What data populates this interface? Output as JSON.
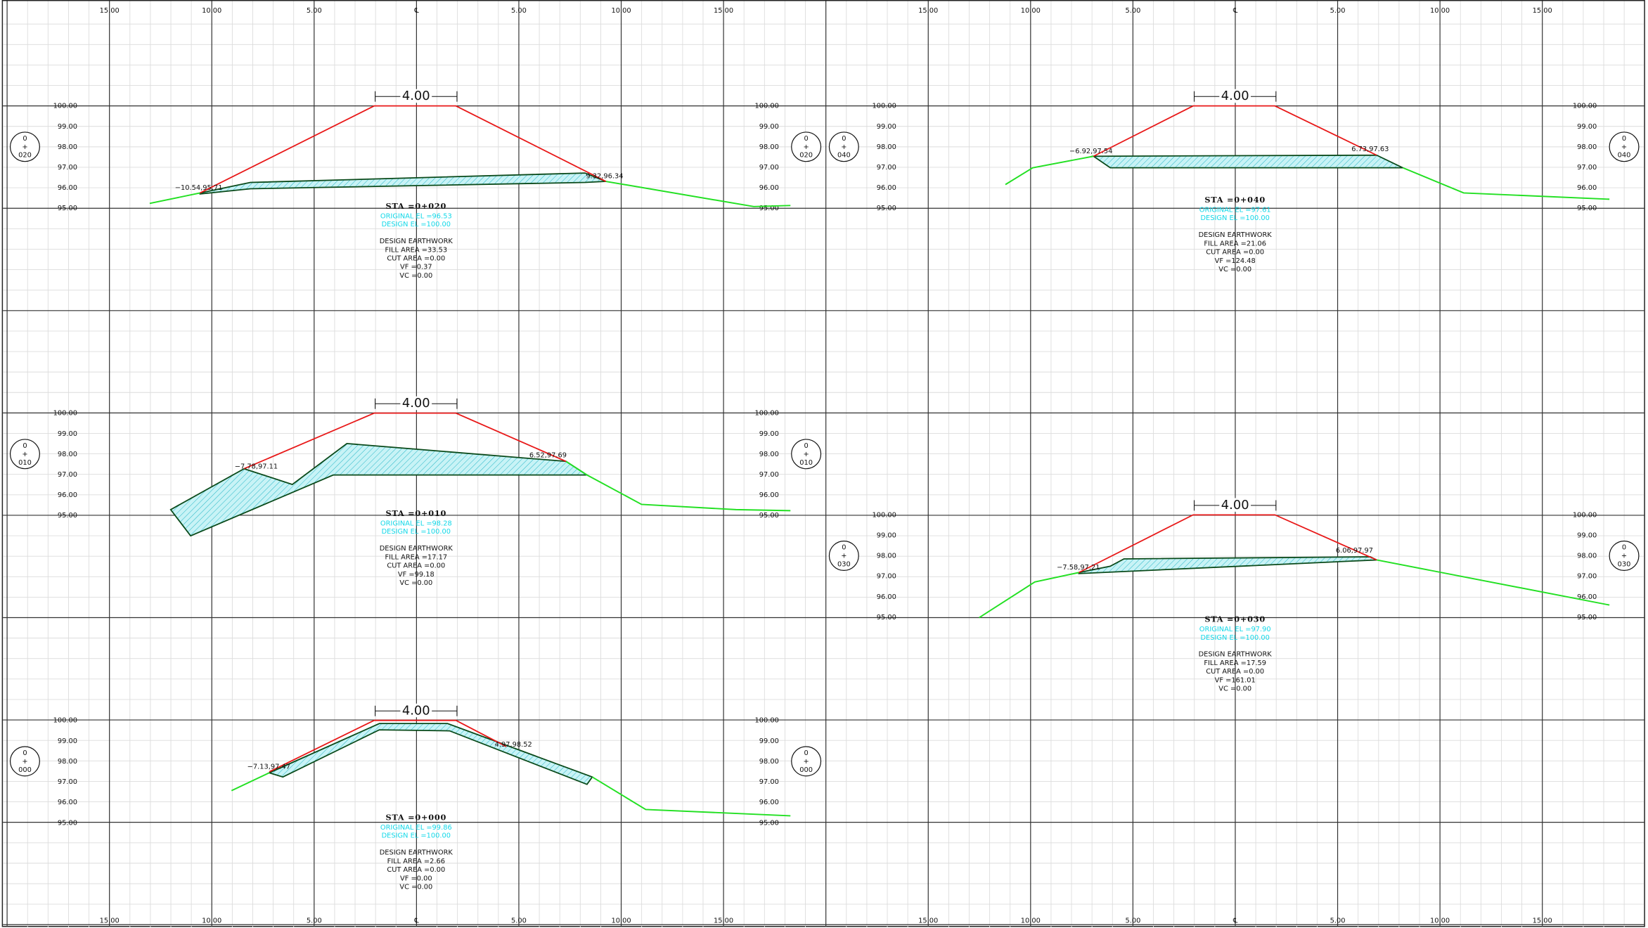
{
  "axis_labels": [
    "15.00",
    "10.00",
    "5.00",
    "℄",
    "5.00",
    "10.00",
    "15.00"
  ],
  "elevation_labels": [
    "100.00",
    "99.00",
    "98.00",
    "97.00",
    "96.00",
    "95.00"
  ],
  "width_label": "4.00",
  "sections": [
    {
      "station": [
        "0",
        "+",
        "020"
      ],
      "left_point": "−10.54,95.71",
      "right_point": "9.32,96.34",
      "sta": "STA =0+020",
      "original": "ORIGINAL EL =96.53",
      "design": "DESIGN EL =100.00",
      "earthwork": [
        "DESIGN EARTHWORK",
        "FILL AREA =33.53",
        "CUT AREA =0.00",
        "VF =0.37",
        "VC =0.00"
      ]
    },
    {
      "station": [
        "0",
        "+",
        "010"
      ],
      "left_point": "−7.78,97.11",
      "right_point": "6.52,97.69",
      "sta": "STA =0+010",
      "original": "ORIGINAL EL =98.28",
      "design": "DESIGN EL =100.00",
      "earthwork": [
        "DESIGN EARTHWORK",
        "FILL AREA =17.17",
        "CUT AREA =0.00",
        "VF =99.18",
        "VC =0.00"
      ]
    },
    {
      "station": [
        "0",
        "+",
        "000"
      ],
      "left_point": "−7.13,97.47",
      "right_point": "4.97,98.52",
      "sta": "STA =0+000",
      "original": "ORIGINAL EL =99.86",
      "design": "DESIGN EL =100.00",
      "earthwork": [
        "DESIGN EARTHWORK",
        "FILL AREA =2.66",
        "CUT AREA =0.00",
        "VF =0.00",
        "VC =0.00"
      ]
    },
    {
      "station": [
        "0",
        "+",
        "040"
      ],
      "left_point": "−6.92,97.54",
      "right_point": "6.73,97.63",
      "sta": "STA =0+040",
      "original": "ORIGINAL EL =97.61",
      "design": "DESIGN EL =100.00",
      "earthwork": [
        "DESIGN EARTHWORK",
        "FILL AREA =21.06",
        "CUT AREA =0.00",
        "VF =124.48",
        "VC =0.00"
      ]
    },
    {
      "station": [
        "0",
        "+",
        "030"
      ],
      "left_point": "−7.58,97.21",
      "right_point": "6.06,97.97",
      "sta": "STA =0+030",
      "original": "ORIGINAL EL =97.90",
      "design": "DESIGN EL =100.00",
      "earthwork": [
        "DESIGN EARTHWORK",
        "FILL AREA =17.59",
        "CUT AREA =0.00",
        "VF =161.01",
        "VC =0.00"
      ]
    }
  ]
}
